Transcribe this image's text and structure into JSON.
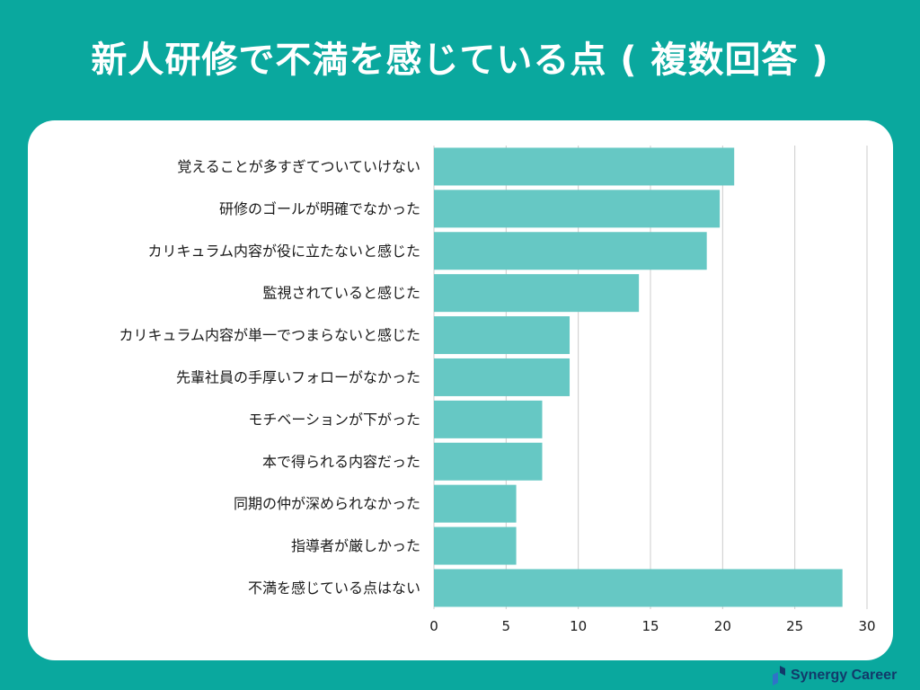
{
  "title": "新人研修で不満を感じている点 ( 複数回答 )",
  "brand": {
    "name": "Synergy Career",
    "logo_icon": "synergy-career-logo-icon"
  },
  "colors": {
    "background": "#0aa89e",
    "bar": "#66c8c4",
    "grid": "#cccccc",
    "label_text": "#1a1a1a"
  },
  "chart_data": {
    "type": "bar",
    "orientation": "horizontal",
    "categories": [
      "覚えることが多すぎてついていけない",
      "研修のゴールが明確でなかった",
      "カリキュラム内容が役に立たないと感じた",
      "監視されていると感じた",
      "カリキュラム内容が単一でつまらないと感じた",
      "先輩社員の手厚いフォローがなかった",
      "モチベーションが下がった",
      "本で得られる内容だった",
      "同期の仲が深められなかった",
      "指導者が厳しかった",
      "不満を感じている点はない"
    ],
    "values": [
      20.8,
      19.8,
      18.9,
      14.2,
      9.4,
      9.4,
      7.5,
      7.5,
      5.7,
      5.7,
      28.3
    ],
    "xlim": [
      0,
      30
    ],
    "xticks": [
      0,
      5,
      10,
      15,
      20,
      25,
      30
    ],
    "grid": true,
    "legend": "none"
  }
}
